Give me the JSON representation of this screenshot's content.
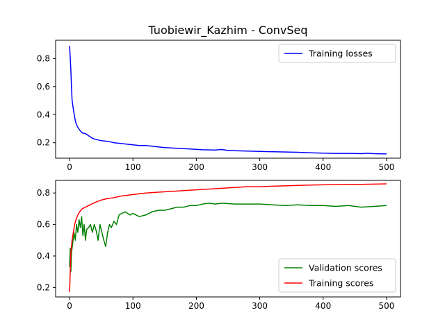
{
  "title": "Tuobiewir_Kazhim - ConvSeq",
  "chart_data": [
    {
      "type": "line",
      "xlim": [
        -22,
        522
      ],
      "ylim": [
        0.09,
        0.93
      ],
      "x_ticks": [
        0,
        100,
        200,
        300,
        400,
        500
      ],
      "x_tick_labels": [
        "0",
        "100",
        "200",
        "300",
        "400",
        "500"
      ],
      "y_ticks": [
        0.2,
        0.4,
        0.6,
        0.8
      ],
      "y_tick_labels": [
        "0.2",
        "0.4",
        "0.6",
        "0.8"
      ],
      "grid": false,
      "legend_position": "top-right",
      "series": [
        {
          "name": "Training losses",
          "color": "#0000ff",
          "points": [
            [
              0,
              0.89
            ],
            [
              2,
              0.72
            ],
            [
              3,
              0.6
            ],
            [
              4,
              0.5
            ],
            [
              6,
              0.44
            ],
            [
              8,
              0.38
            ],
            [
              10,
              0.34
            ],
            [
              13,
              0.31
            ],
            [
              16,
              0.29
            ],
            [
              20,
              0.27
            ],
            [
              25,
              0.265
            ],
            [
              30,
              0.25
            ],
            [
              35,
              0.235
            ],
            [
              40,
              0.225
            ],
            [
              50,
              0.215
            ],
            [
              60,
              0.21
            ],
            [
              70,
              0.2
            ],
            [
              80,
              0.195
            ],
            [
              90,
              0.19
            ],
            [
              100,
              0.185
            ],
            [
              110,
              0.18
            ],
            [
              120,
              0.18
            ],
            [
              130,
              0.175
            ],
            [
              140,
              0.17
            ],
            [
              150,
              0.165
            ],
            [
              170,
              0.16
            ],
            [
              190,
              0.155
            ],
            [
              210,
              0.15
            ],
            [
              230,
              0.148
            ],
            [
              240,
              0.152
            ],
            [
              250,
              0.145
            ],
            [
              270,
              0.142
            ],
            [
              300,
              0.138
            ],
            [
              330,
              0.135
            ],
            [
              360,
              0.132
            ],
            [
              380,
              0.128
            ],
            [
              400,
              0.126
            ],
            [
              420,
              0.124
            ],
            [
              440,
              0.124
            ],
            [
              460,
              0.122
            ],
            [
              470,
              0.125
            ],
            [
              480,
              0.122
            ],
            [
              490,
              0.121
            ],
            [
              500,
              0.12
            ]
          ]
        }
      ]
    },
    {
      "type": "line",
      "xlim": [
        -22,
        522
      ],
      "ylim": [
        0.14,
        0.88
      ],
      "x_ticks": [
        0,
        100,
        200,
        300,
        400,
        500
      ],
      "x_tick_labels": [
        "0",
        "100",
        "200",
        "300",
        "400",
        "500"
      ],
      "y_ticks": [
        0.2,
        0.4,
        0.6,
        0.8
      ],
      "y_tick_labels": [
        "0.2",
        "0.4",
        "0.6",
        "0.8"
      ],
      "grid": false,
      "legend_position": "bottom-right",
      "series": [
        {
          "name": "Validation scores",
          "color": "#008000",
          "points": [
            [
              0,
              0.33
            ],
            [
              1,
              0.45
            ],
            [
              2,
              0.3
            ],
            [
              3,
              0.42
            ],
            [
              5,
              0.48
            ],
            [
              7,
              0.55
            ],
            [
              9,
              0.5
            ],
            [
              11,
              0.6
            ],
            [
              13,
              0.55
            ],
            [
              15,
              0.63
            ],
            [
              17,
              0.58
            ],
            [
              19,
              0.65
            ],
            [
              21,
              0.53
            ],
            [
              23,
              0.6
            ],
            [
              25,
              0.5
            ],
            [
              27,
              0.57
            ],
            [
              30,
              0.58
            ],
            [
              33,
              0.6
            ],
            [
              36,
              0.55
            ],
            [
              39,
              0.6
            ],
            [
              42,
              0.56
            ],
            [
              45,
              0.5
            ],
            [
              48,
              0.6
            ],
            [
              51,
              0.55
            ],
            [
              54,
              0.5
            ],
            [
              57,
              0.46
            ],
            [
              60,
              0.55
            ],
            [
              63,
              0.6
            ],
            [
              66,
              0.58
            ],
            [
              70,
              0.62
            ],
            [
              74,
              0.6
            ],
            [
              78,
              0.66
            ],
            [
              82,
              0.67
            ],
            [
              88,
              0.68
            ],
            [
              95,
              0.66
            ],
            [
              100,
              0.67
            ],
            [
              110,
              0.65
            ],
            [
              120,
              0.66
            ],
            [
              130,
              0.68
            ],
            [
              140,
              0.69
            ],
            [
              150,
              0.69
            ],
            [
              160,
              0.7
            ],
            [
              170,
              0.71
            ],
            [
              180,
              0.71
            ],
            [
              190,
              0.72
            ],
            [
              200,
              0.72
            ],
            [
              210,
              0.73
            ],
            [
              220,
              0.735
            ],
            [
              230,
              0.73
            ],
            [
              240,
              0.735
            ],
            [
              260,
              0.73
            ],
            [
              280,
              0.73
            ],
            [
              300,
              0.73
            ],
            [
              320,
              0.725
            ],
            [
              340,
              0.72
            ],
            [
              360,
              0.725
            ],
            [
              380,
              0.72
            ],
            [
              400,
              0.72
            ],
            [
              420,
              0.715
            ],
            [
              440,
              0.72
            ],
            [
              460,
              0.71
            ],
            [
              480,
              0.715
            ],
            [
              500,
              0.72
            ]
          ]
        },
        {
          "name": "Training scores",
          "color": "#ff0000",
          "points": [
            [
              0,
              0.17
            ],
            [
              1,
              0.3
            ],
            [
              2,
              0.42
            ],
            [
              4,
              0.5
            ],
            [
              6,
              0.55
            ],
            [
              8,
              0.6
            ],
            [
              10,
              0.63
            ],
            [
              13,
              0.66
            ],
            [
              16,
              0.68
            ],
            [
              20,
              0.7
            ],
            [
              25,
              0.71
            ],
            [
              30,
              0.72
            ],
            [
              40,
              0.74
            ],
            [
              50,
              0.755
            ],
            [
              60,
              0.765
            ],
            [
              70,
              0.77
            ],
            [
              80,
              0.78
            ],
            [
              90,
              0.785
            ],
            [
              100,
              0.79
            ],
            [
              120,
              0.8
            ],
            [
              140,
              0.805
            ],
            [
              160,
              0.81
            ],
            [
              180,
              0.815
            ],
            [
              200,
              0.82
            ],
            [
              220,
              0.825
            ],
            [
              240,
              0.83
            ],
            [
              260,
              0.835
            ],
            [
              280,
              0.84
            ],
            [
              300,
              0.84
            ],
            [
              320,
              0.843
            ],
            [
              340,
              0.845
            ],
            [
              360,
              0.848
            ],
            [
              380,
              0.85
            ],
            [
              400,
              0.852
            ],
            [
              420,
              0.853
            ],
            [
              440,
              0.855
            ],
            [
              460,
              0.855
            ],
            [
              480,
              0.856
            ],
            [
              500,
              0.858
            ]
          ]
        }
      ]
    }
  ]
}
